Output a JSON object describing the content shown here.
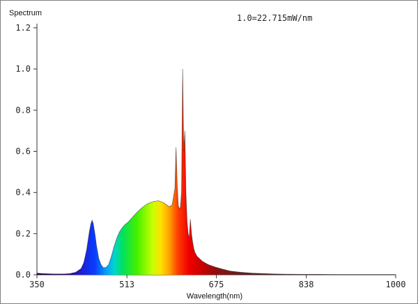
{
  "chart_data": {
    "type": "area",
    "title": "",
    "ylabel": "Spectrum",
    "xlabel": "Wavelength(nm)",
    "annotation": "1.0=22.715mW/nm",
    "xlim": [
      350,
      1000
    ],
    "ylim": [
      0,
      1.2
    ],
    "x_ticks": [
      350,
      513,
      675,
      838,
      1000
    ],
    "x_tick_labels": [
      "350",
      "513",
      "675",
      "838",
      "1000"
    ],
    "y_ticks": [
      0,
      0.2,
      0.4,
      0.6,
      0.8,
      1.0,
      1.2
    ],
    "y_tick_labels": [
      "0.0",
      "0.2",
      "0.4",
      "0.6",
      "0.8",
      "1.0",
      "1.2"
    ],
    "grid": false,
    "fill": "visible-spectrum gradient, dark red beyond 700 nm",
    "series": [
      {
        "x": [
          350,
          360,
          380,
          400,
          410,
          420,
          430,
          435,
          440,
          445,
          448,
          450,
          452,
          455,
          458,
          462,
          466,
          470,
          475,
          480,
          485,
          490,
          495,
          500,
          505,
          510,
          515,
          520,
          525,
          530,
          540,
          550,
          560,
          570,
          575,
          580,
          585,
          590,
          595,
          600,
          602,
          604,
          606,
          608,
          610,
          612,
          614,
          616,
          618,
          620,
          622,
          624,
          626,
          628,
          630,
          632,
          634,
          636,
          638,
          640,
          650,
          660,
          670,
          680,
          690,
          700,
          720,
          740,
          760,
          780,
          800,
          830,
          860,
          900,
          950,
          1000
        ],
        "y": [
          0.008,
          0.006,
          0.004,
          0.004,
          0.006,
          0.012,
          0.03,
          0.06,
          0.12,
          0.21,
          0.25,
          0.265,
          0.25,
          0.2,
          0.14,
          0.08,
          0.05,
          0.035,
          0.035,
          0.05,
          0.09,
          0.14,
          0.18,
          0.21,
          0.23,
          0.245,
          0.255,
          0.27,
          0.285,
          0.3,
          0.325,
          0.345,
          0.355,
          0.36,
          0.355,
          0.35,
          0.34,
          0.33,
          0.34,
          0.42,
          0.62,
          0.45,
          0.34,
          0.32,
          0.33,
          0.4,
          1.0,
          0.6,
          0.7,
          0.4,
          0.26,
          0.2,
          0.18,
          0.27,
          0.2,
          0.16,
          0.13,
          0.11,
          0.1,
          0.09,
          0.065,
          0.05,
          0.04,
          0.032,
          0.025,
          0.018,
          0.012,
          0.008,
          0.006,
          0.004,
          0.003,
          0.002,
          0.002,
          0.001,
          0.001,
          0.001
        ]
      }
    ]
  }
}
